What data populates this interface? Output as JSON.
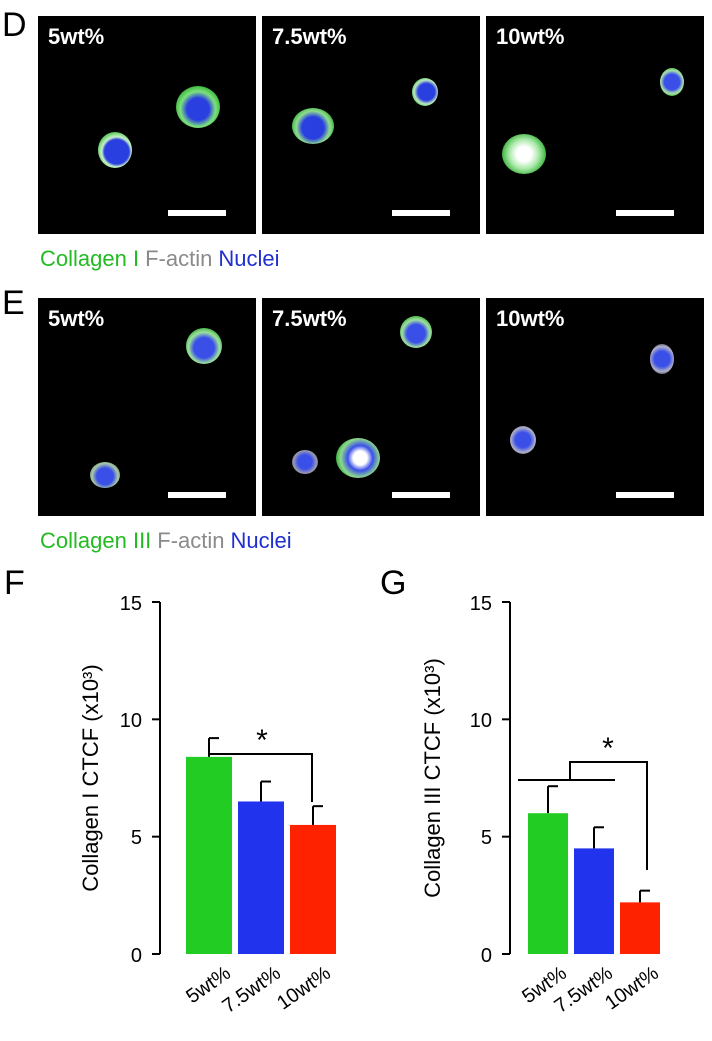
{
  "panels": {
    "D": {
      "letter": "D",
      "images": [
        {
          "label": "5wt%"
        },
        {
          "label": "7.5wt%"
        },
        {
          "label": "10wt%"
        }
      ],
      "legend": [
        {
          "text": "Collagen I",
          "color": "#22bb22"
        },
        {
          "text": "F-actin",
          "color": "#8a8a8a"
        },
        {
          "text": "Nuclei",
          "color": "#1f2fd0"
        }
      ]
    },
    "E": {
      "letter": "E",
      "images": [
        {
          "label": "5wt%"
        },
        {
          "label": "7.5wt%"
        },
        {
          "label": "10wt%"
        }
      ],
      "legend": [
        {
          "text": "Collagen III",
          "color": "#22bb22"
        },
        {
          "text": "F-actin",
          "color": "#8a8a8a"
        },
        {
          "text": "Nuclei",
          "color": "#1f2fd0"
        }
      ]
    },
    "F": {
      "letter": "F"
    },
    "G": {
      "letter": "G"
    }
  },
  "chart_data": [
    {
      "type": "bar",
      "panel": "F",
      "ylabel": "Collagen I CTCF (x10³)",
      "categories": [
        "5wt%",
        "7.5wt%",
        "10wt%"
      ],
      "values": [
        8.4,
        6.5,
        5.5
      ],
      "errors": [
        0.8,
        0.85,
        0.8
      ],
      "colors": [
        "#22cc22",
        "#2233ee",
        "#ff2200"
      ],
      "ylim": [
        0,
        15
      ],
      "yticks": [
        "0",
        "5",
        "10",
        "15"
      ],
      "annotation": "*"
    },
    {
      "type": "bar",
      "panel": "G",
      "ylabel": "Collagen III CTCF (x10³)",
      "categories": [
        "5wt%",
        "7.5wt%",
        "10wt%"
      ],
      "values": [
        6.0,
        4.5,
        2.2
      ],
      "errors": [
        1.15,
        0.9,
        0.5
      ],
      "colors": [
        "#22cc22",
        "#2233ee",
        "#ff2200"
      ],
      "ylim": [
        0,
        15
      ],
      "yticks": [
        "0",
        "5",
        "10",
        "15"
      ],
      "annotation": "*"
    }
  ]
}
